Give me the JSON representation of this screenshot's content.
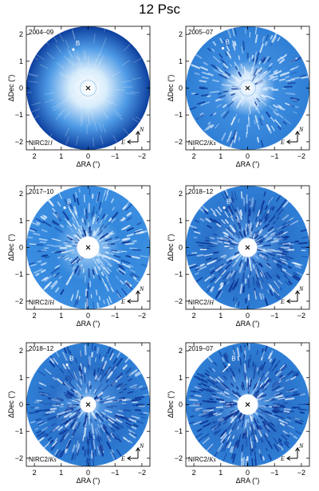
{
  "title": "12 Psc",
  "ylabel": "ΔDec (\")",
  "xlabel": "ΔRA (\")",
  "xticks": [
    "2",
    "1",
    "0",
    "−1",
    "−2"
  ],
  "yticks": [
    "2",
    "1",
    "0",
    "−1",
    "−2"
  ],
  "companion_label": "B",
  "compass": {
    "north": "N",
    "east": "E"
  },
  "panels": [
    {
      "epoch": "2004–09",
      "instrument": "NIRC2/",
      "band": "J"
    },
    {
      "epoch": "2005–07",
      "instrument": "NIRC2/",
      "band": "Ks"
    },
    {
      "epoch": "2017–10",
      "instrument": "NIRC2/",
      "band": "H"
    },
    {
      "epoch": "2018–12",
      "instrument": "NIRC2/",
      "band": "H"
    },
    {
      "epoch": "2018–12",
      "instrument": "NIRC2/",
      "band": "Ks"
    },
    {
      "epoch": "2019–07",
      "instrument": "NIRC2/",
      "band": "Ks"
    }
  ],
  "colors": {
    "disk": "#2f7fd6",
    "deep": "#0b2f8f",
    "core": "#ffffff"
  }
}
